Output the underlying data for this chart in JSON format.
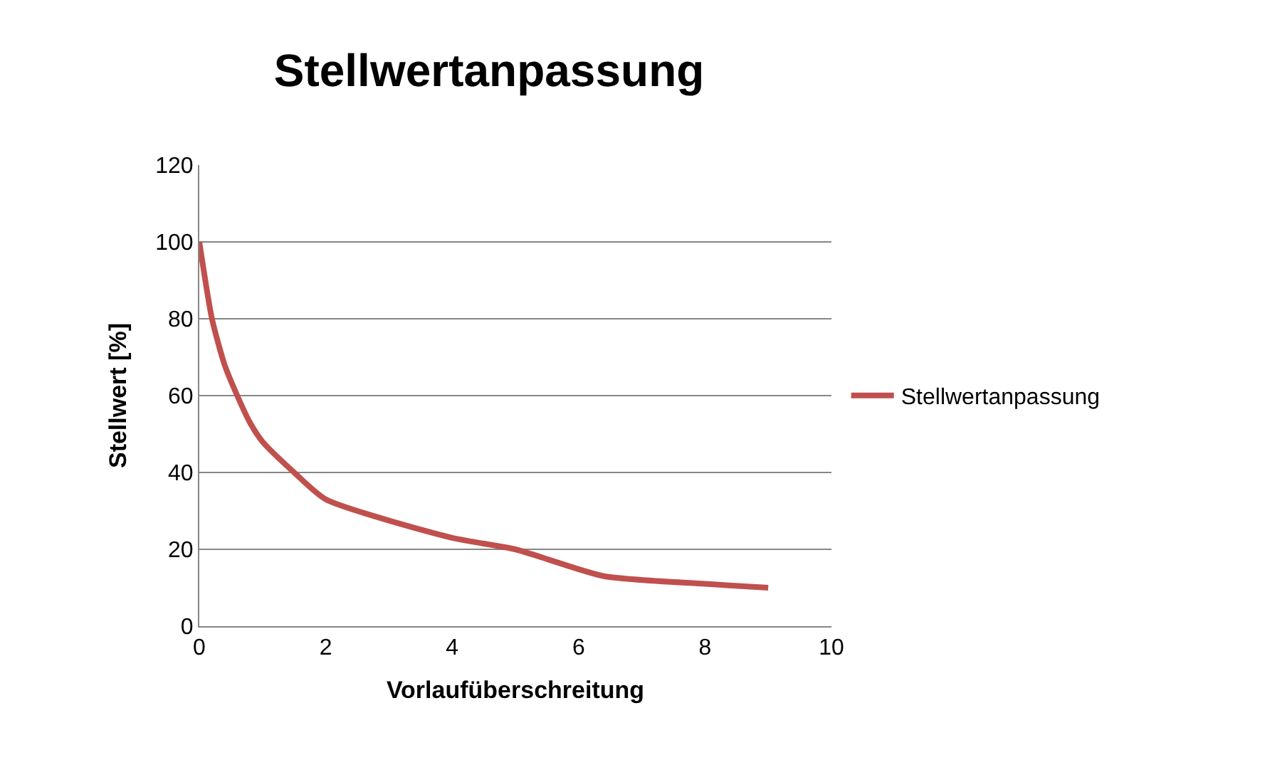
{
  "chart_data": {
    "type": "line",
    "title": "Stellwertanpassung",
    "xlabel": "Vorlaufüberschreitung",
    "ylabel": "Stellwert [%]",
    "x": [
      0,
      0.2,
      0.4,
      0.6,
      0.8,
      1,
      1.5,
      2,
      4,
      5,
      6.4,
      8,
      9
    ],
    "series": [
      {
        "name": "Stellwertanpassung",
        "color": "#c0504d",
        "values": [
          100,
          80,
          68,
          60,
          53,
          48,
          40,
          33,
          23,
          20,
          13,
          11,
          10
        ]
      }
    ],
    "xlim": [
      0,
      10
    ],
    "xticks": [
      0,
      2,
      4,
      6,
      8,
      10
    ],
    "ylim": [
      0,
      120
    ],
    "yticks": [
      0,
      20,
      40,
      60,
      80,
      100,
      120
    ],
    "grid": "y",
    "legend": "right",
    "marker": "none",
    "line_style": "solid"
  }
}
